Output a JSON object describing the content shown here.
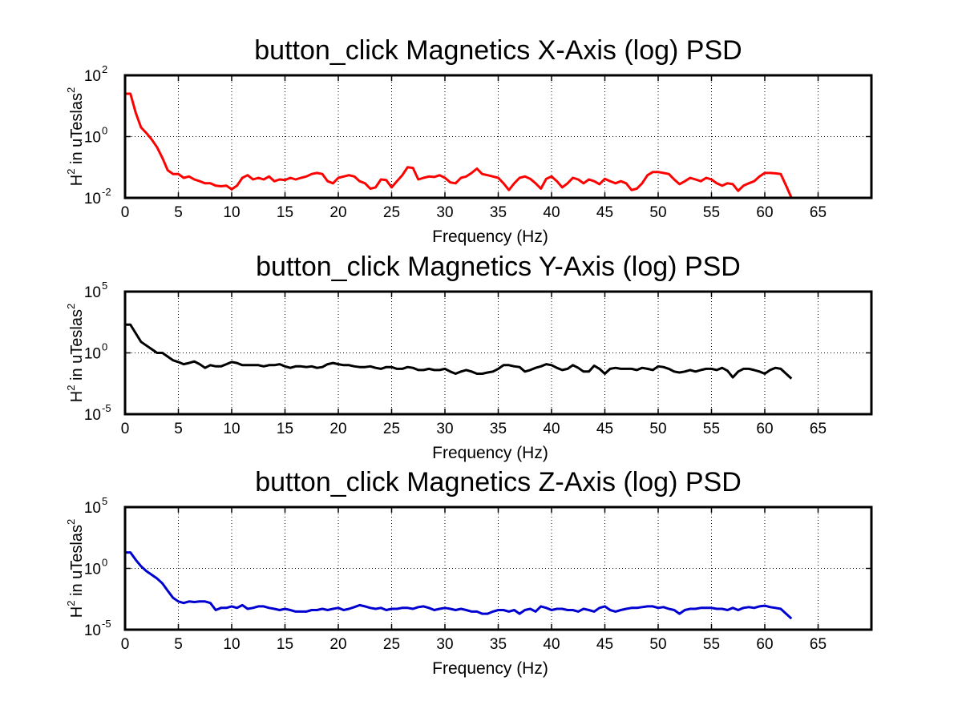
{
  "chart_data": [
    {
      "type": "line",
      "title": "button_click Magnetics X-Axis (log) PSD",
      "xlabel": "Frequency (Hz)",
      "ylabel": {
        "base": "H",
        "sup1": "2",
        "mid": " in uTeslas",
        "sup2": "2"
      },
      "xlim": [
        0,
        70
      ],
      "ylim": [
        0.01,
        100
      ],
      "yscale": "log",
      "grid": true,
      "line_color": "#ff0000",
      "xticks": [
        0,
        5,
        10,
        15,
        20,
        25,
        30,
        35,
        40,
        45,
        50,
        55,
        60,
        65
      ],
      "yticks": [
        {
          "value": 0.01,
          "base": "10",
          "exp": "-2"
        },
        {
          "value": 1,
          "base": "10",
          "exp": "0"
        },
        {
          "value": 100,
          "base": "10",
          "exp": "2"
        }
      ],
      "series": [
        {
          "x": [
            0,
            0.5,
            1,
            1.5,
            2,
            2.5,
            3,
            3.5,
            4,
            4.5,
            5,
            5.5,
            6,
            6.5,
            7,
            7.5,
            8,
            8.5,
            9,
            9.5,
            10,
            10.5,
            11,
            11.5,
            12,
            12.5,
            13,
            13.5,
            14,
            14.5,
            15,
            15.5,
            16,
            16.5,
            17,
            17.5,
            18,
            18.5,
            19,
            19.5,
            20,
            20.5,
            21,
            21.5,
            22,
            22.5,
            23,
            23.5,
            24,
            24.5,
            25,
            25.5,
            26,
            26.5,
            27,
            27.5,
            28,
            28.5,
            29,
            29.5,
            30,
            30.5,
            31,
            31.5,
            32,
            32.5,
            33,
            33.5,
            34,
            34.5,
            35,
            35.5,
            36,
            36.5,
            37,
            37.5,
            38,
            38.5,
            39,
            39.5,
            40,
            40.5,
            41,
            41.5,
            42,
            42.5,
            43,
            43.5,
            44,
            44.5,
            45,
            45.5,
            46,
            46.5,
            47,
            47.5,
            48,
            48.5,
            49,
            49.5,
            50,
            50.5,
            51,
            51.5,
            52,
            52.5,
            53,
            53.5,
            54,
            54.5,
            55,
            55.5,
            56,
            56.5,
            57,
            57.5,
            58,
            58.5,
            59,
            59.5,
            60,
            60.5,
            61,
            61.5,
            62,
            62.5
          ],
          "y": [
            25,
            25,
            6,
            2,
            1.3,
            0.8,
            0.45,
            0.2,
            0.08,
            0.06,
            0.06,
            0.045,
            0.05,
            0.04,
            0.035,
            0.03,
            0.03,
            0.025,
            0.024,
            0.025,
            0.019,
            0.025,
            0.045,
            0.055,
            0.04,
            0.045,
            0.04,
            0.05,
            0.035,
            0.04,
            0.038,
            0.045,
            0.04,
            0.045,
            0.05,
            0.06,
            0.065,
            0.06,
            0.035,
            0.03,
            0.045,
            0.05,
            0.055,
            0.05,
            0.035,
            0.03,
            0.02,
            0.022,
            0.04,
            0.038,
            0.022,
            0.035,
            0.055,
            0.1,
            0.095,
            0.04,
            0.045,
            0.05,
            0.048,
            0.055,
            0.045,
            0.032,
            0.03,
            0.045,
            0.05,
            0.065,
            0.09,
            0.06,
            0.055,
            0.05,
            0.045,
            0.03,
            0.018,
            0.03,
            0.045,
            0.05,
            0.042,
            0.03,
            0.02,
            0.042,
            0.05,
            0.035,
            0.022,
            0.03,
            0.045,
            0.04,
            0.03,
            0.04,
            0.035,
            0.028,
            0.042,
            0.035,
            0.03,
            0.035,
            0.03,
            0.018,
            0.02,
            0.03,
            0.055,
            0.07,
            0.07,
            0.065,
            0.06,
            0.04,
            0.028,
            0.035,
            0.045,
            0.04,
            0.035,
            0.045,
            0.04,
            0.03,
            0.025,
            0.03,
            0.028,
            0.017,
            0.025,
            0.03,
            0.035,
            0.05,
            0.065,
            0.065,
            0.063,
            0.06,
            0.025,
            0.008
          ]
        }
      ]
    },
    {
      "type": "line",
      "title": "button_click Magnetics Y-Axis (log) PSD",
      "xlabel": "Frequency (Hz)",
      "ylabel": {
        "base": "H",
        "sup1": "2",
        "mid": " in uTeslas",
        "sup2": "2"
      },
      "xlim": [
        0,
        70
      ],
      "ylim": [
        1e-05,
        100000
      ],
      "yscale": "log",
      "grid": true,
      "line_color": "#000000",
      "xticks": [
        0,
        5,
        10,
        15,
        20,
        25,
        30,
        35,
        40,
        45,
        50,
        55,
        60,
        65
      ],
      "yticks": [
        {
          "value": 1e-05,
          "base": "10",
          "exp": "-5"
        },
        {
          "value": 1,
          "base": "10",
          "exp": "0"
        },
        {
          "value": 100000,
          "base": "10",
          "exp": "5"
        }
      ],
      "series": [
        {
          "x": [
            0,
            0.5,
            1,
            1.5,
            2,
            2.5,
            3,
            3.5,
            4,
            4.5,
            5,
            5.5,
            6,
            6.5,
            7,
            7.5,
            8,
            8.5,
            9,
            9.5,
            10,
            10.5,
            11,
            11.5,
            12,
            12.5,
            13,
            13.5,
            14,
            14.5,
            15,
            15.5,
            16,
            16.5,
            17,
            17.5,
            18,
            18.5,
            19,
            19.5,
            20,
            20.5,
            21,
            21.5,
            22,
            22.5,
            23,
            23.5,
            24,
            24.5,
            25,
            25.5,
            26,
            26.5,
            27,
            27.5,
            28,
            28.5,
            29,
            29.5,
            30,
            30.5,
            31,
            31.5,
            32,
            32.5,
            33,
            33.5,
            34,
            34.5,
            35,
            35.5,
            36,
            36.5,
            37,
            37.5,
            38,
            38.5,
            39,
            39.5,
            40,
            40.5,
            41,
            41.5,
            42,
            42.5,
            43,
            43.5,
            44,
            44.5,
            45,
            45.5,
            46,
            46.5,
            47,
            47.5,
            48,
            48.5,
            49,
            49.5,
            50,
            50.5,
            51,
            51.5,
            52,
            52.5,
            53,
            53.5,
            54,
            54.5,
            55,
            55.5,
            56,
            56.5,
            57,
            57.5,
            58,
            58.5,
            59,
            59.5,
            60,
            60.5,
            61,
            61.5,
            62,
            62.5
          ],
          "y": [
            200,
            200,
            40,
            8,
            4,
            2,
            1,
            1,
            0.5,
            0.25,
            0.18,
            0.12,
            0.15,
            0.2,
            0.12,
            0.06,
            0.1,
            0.08,
            0.08,
            0.12,
            0.18,
            0.15,
            0.1,
            0.1,
            0.1,
            0.1,
            0.08,
            0.1,
            0.1,
            0.12,
            0.08,
            0.06,
            0.08,
            0.08,
            0.07,
            0.08,
            0.06,
            0.07,
            0.12,
            0.15,
            0.12,
            0.1,
            0.1,
            0.08,
            0.07,
            0.07,
            0.08,
            0.06,
            0.05,
            0.07,
            0.07,
            0.05,
            0.05,
            0.07,
            0.06,
            0.04,
            0.04,
            0.05,
            0.04,
            0.04,
            0.05,
            0.03,
            0.02,
            0.03,
            0.04,
            0.03,
            0.02,
            0.02,
            0.025,
            0.03,
            0.05,
            0.1,
            0.1,
            0.08,
            0.07,
            0.03,
            0.04,
            0.06,
            0.08,
            0.12,
            0.1,
            0.06,
            0.04,
            0.05,
            0.1,
            0.06,
            0.03,
            0.03,
            0.09,
            0.05,
            0.02,
            0.05,
            0.06,
            0.05,
            0.05,
            0.05,
            0.04,
            0.06,
            0.05,
            0.04,
            0.08,
            0.07,
            0.05,
            0.03,
            0.025,
            0.03,
            0.04,
            0.03,
            0.04,
            0.05,
            0.05,
            0.04,
            0.06,
            0.035,
            0.01,
            0.03,
            0.05,
            0.05,
            0.04,
            0.03,
            0.02,
            0.04,
            0.06,
            0.05,
            0.02,
            0.008
          ]
        }
      ]
    },
    {
      "type": "line",
      "title": "button_click Magnetics Z-Axis (log) PSD",
      "xlabel": "Frequency (Hz)",
      "ylabel": {
        "base": "H",
        "sup1": "2",
        "mid": " in uTeslas",
        "sup2": "2"
      },
      "xlim": [
        0,
        70
      ],
      "ylim": [
        1e-05,
        100000
      ],
      "yscale": "log",
      "grid": true,
      "line_color": "#0000d0",
      "xticks": [
        0,
        5,
        10,
        15,
        20,
        25,
        30,
        35,
        40,
        45,
        50,
        55,
        60,
        65
      ],
      "yticks": [
        {
          "value": 1e-05,
          "base": "10",
          "exp": "-5"
        },
        {
          "value": 1,
          "base": "10",
          "exp": "0"
        },
        {
          "value": 100000,
          "base": "10",
          "exp": "5"
        }
      ],
      "series": [
        {
          "x": [
            0,
            0.5,
            1,
            1.5,
            2,
            2.5,
            3,
            3.5,
            4,
            4.5,
            5,
            5.5,
            6,
            6.5,
            7,
            7.5,
            8,
            8.5,
            9,
            9.5,
            10,
            10.5,
            11,
            11.5,
            12,
            12.5,
            13,
            13.5,
            14,
            14.5,
            15,
            15.5,
            16,
            16.5,
            17,
            17.5,
            18,
            18.5,
            19,
            19.5,
            20,
            20.5,
            21,
            21.5,
            22,
            22.5,
            23,
            23.5,
            24,
            24.5,
            25,
            25.5,
            26,
            26.5,
            27,
            27.5,
            28,
            28.5,
            29,
            29.5,
            30,
            30.5,
            31,
            31.5,
            32,
            32.5,
            33,
            33.5,
            34,
            34.5,
            35,
            35.5,
            36,
            36.5,
            37,
            37.5,
            38,
            38.5,
            39,
            39.5,
            40,
            40.5,
            41,
            41.5,
            42,
            42.5,
            43,
            43.5,
            44,
            44.5,
            45,
            45.5,
            46,
            46.5,
            47,
            47.5,
            48,
            48.5,
            49,
            49.5,
            50,
            50.5,
            51,
            51.5,
            52,
            52.5,
            53,
            53.5,
            54,
            54.5,
            55,
            55.5,
            56,
            56.5,
            57,
            57.5,
            58,
            58.5,
            59,
            59.5,
            60,
            60.5,
            61,
            61.5,
            62,
            62.5
          ],
          "y": [
            20,
            20,
            5,
            1.5,
            0.6,
            0.3,
            0.15,
            0.06,
            0.015,
            0.004,
            0.002,
            0.0015,
            0.002,
            0.0018,
            0.002,
            0.002,
            0.0015,
            0.0004,
            0.0006,
            0.0006,
            0.0008,
            0.0006,
            0.001,
            0.0005,
            0.0006,
            0.0008,
            0.0008,
            0.0006,
            0.0005,
            0.0004,
            0.0005,
            0.0004,
            0.0003,
            0.0003,
            0.0003,
            0.0004,
            0.0004,
            0.0005,
            0.0004,
            0.0005,
            0.0006,
            0.0004,
            0.0005,
            0.0007,
            0.001,
            0.0008,
            0.0006,
            0.0005,
            0.0006,
            0.0004,
            0.0005,
            0.0005,
            0.0006,
            0.0006,
            0.0005,
            0.0007,
            0.0008,
            0.0006,
            0.0004,
            0.0005,
            0.0006,
            0.0005,
            0.0004,
            0.0005,
            0.0004,
            0.0003,
            0.0003,
            0.0002,
            0.0002,
            0.0003,
            0.0004,
            0.0004,
            0.0003,
            0.0004,
            0.0002,
            0.0004,
            0.0005,
            0.0003,
            0.0008,
            0.0006,
            0.0004,
            0.0005,
            0.0005,
            0.0004,
            0.0004,
            0.0003,
            0.0005,
            0.0004,
            0.0003,
            0.0006,
            0.0008,
            0.0004,
            0.0003,
            0.0004,
            0.0005,
            0.0006,
            0.0006,
            0.0007,
            0.0008,
            0.0008,
            0.0006,
            0.0007,
            0.0005,
            0.0004,
            0.0002,
            0.0004,
            0.0005,
            0.0005,
            0.0006,
            0.0006,
            0.0006,
            0.0005,
            0.0005,
            0.0004,
            0.0006,
            0.0004,
            0.0006,
            0.0007,
            0.0006,
            0.0008,
            0.0009,
            0.0007,
            0.0006,
            0.0005,
            0.0002,
            8e-05
          ]
        }
      ]
    }
  ]
}
